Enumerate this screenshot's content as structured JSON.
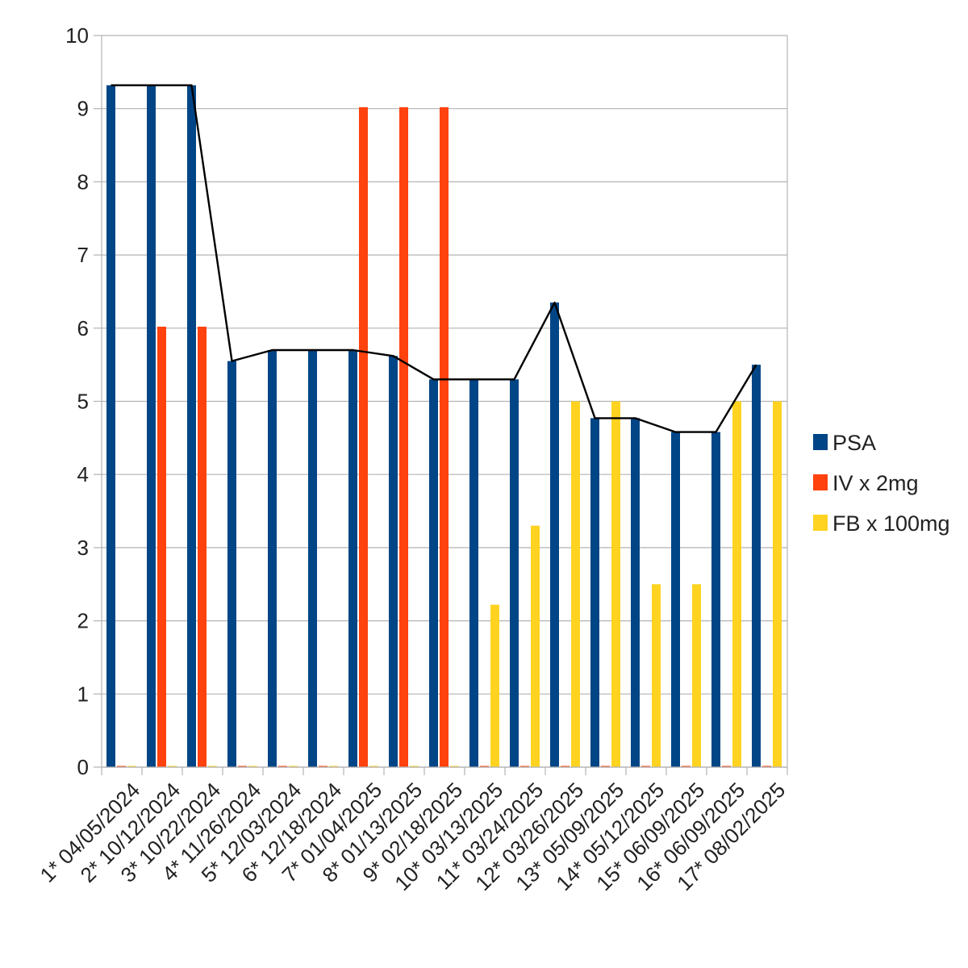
{
  "chart_data": {
    "type": "bar",
    "title": "",
    "xlabel": "",
    "ylabel": "",
    "ylim": [
      0,
      10
    ],
    "yticks": [
      0,
      1,
      2,
      3,
      4,
      5,
      6,
      7,
      8,
      9,
      10
    ],
    "grid": true,
    "legend_position": "right",
    "categories": [
      "1* 04/05/2024",
      "2* 10/12/2024",
      "3* 10/22/2024",
      "4* 11/26/2024",
      "5* 12/03/2024",
      "6* 12/18/2024",
      "7* 01/04/2025",
      "8* 01/13/2025",
      "9* 02/18/2025",
      "10* 03/13/2025",
      "11* 03/24/2025",
      "12* 03/26/2025",
      "13* 05/09/2025",
      "14* 05/12/2025",
      "15* 06/09/2025",
      "16* 06/09/2025",
      "17* 08/02/2025"
    ],
    "series": [
      {
        "name": "PSA",
        "color": "#004586",
        "values": [
          9.32,
          9.32,
          9.32,
          5.55,
          5.7,
          5.7,
          5.7,
          5.62,
          5.3,
          5.3,
          5.3,
          6.35,
          4.77,
          4.77,
          4.58,
          4.58,
          5.5
        ]
      },
      {
        "name": "IV x 2mg",
        "color": "#ff420e",
        "values": [
          0,
          6.02,
          6.02,
          0,
          0,
          0,
          9.02,
          9.02,
          9.02,
          0,
          0,
          0,
          0,
          0,
          0,
          0,
          0
        ]
      },
      {
        "name": "FB x 100mg",
        "color": "#ffd320",
        "values": [
          0,
          0,
          0,
          0,
          0,
          0,
          0,
          0,
          0,
          2.22,
          3.3,
          5.0,
          5.0,
          2.5,
          2.5,
          5.0,
          5.0
        ]
      }
    ],
    "trend_line": {
      "color": "#000000",
      "values": [
        9.32,
        9.32,
        9.32,
        5.55,
        5.7,
        5.7,
        5.7,
        5.62,
        5.3,
        5.3,
        5.3,
        6.35,
        4.77,
        4.77,
        4.58,
        4.58,
        5.5
      ]
    }
  }
}
